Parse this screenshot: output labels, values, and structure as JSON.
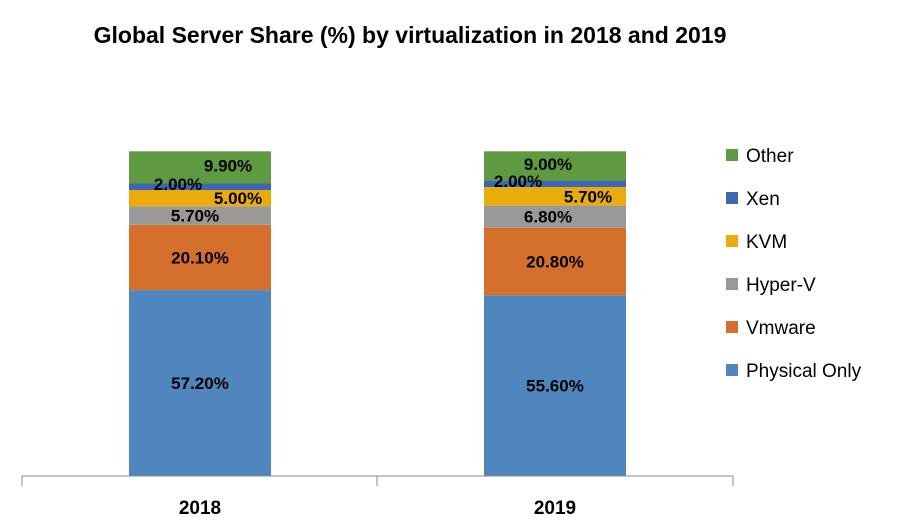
{
  "chart_data": {
    "type": "stacked-bar",
    "title": "Global Server Share (%) by virtualization in 2018 and 2019",
    "categories": [
      "2018",
      "2019"
    ],
    "series": [
      {
        "name": "Physical Only",
        "values": [
          57.2,
          55.6
        ],
        "labels": [
          "57.20%",
          "55.60%"
        ],
        "color": "#4F86BD"
      },
      {
        "name": "Vmware",
        "values": [
          20.1,
          20.8
        ],
        "labels": [
          "20.10%",
          "20.80%"
        ],
        "color": "#D46F2C"
      },
      {
        "name": "Hyper-V",
        "values": [
          5.7,
          6.8
        ],
        "labels": [
          "5.70%",
          "6.80%"
        ],
        "color": "#999999"
      },
      {
        "name": "KVM",
        "values": [
          5.0,
          5.7
        ],
        "labels": [
          "5.00%",
          "5.70%"
        ],
        "color": "#E9AC0C"
      },
      {
        "name": "Xen",
        "values": [
          2.0,
          2.0
        ],
        "labels": [
          "2.00%",
          "2.00%"
        ],
        "color": "#3F66B1"
      },
      {
        "name": "Other",
        "values": [
          9.9,
          9.0
        ],
        "labels": [
          "9.90%",
          "9.00%"
        ],
        "color": "#5E9A40"
      }
    ],
    "ylim": [
      0,
      100
    ],
    "grid": false,
    "legend_position": "right"
  }
}
